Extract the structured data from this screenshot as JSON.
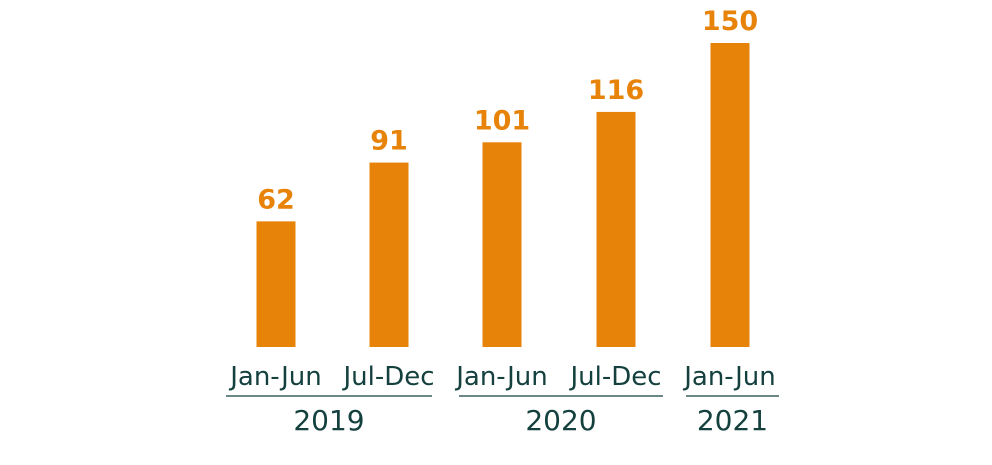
{
  "colors": {
    "bar": "#E8830A",
    "value_label": "#E8830A",
    "axis_text": "#14403E"
  },
  "chart_data": {
    "type": "bar",
    "title": "",
    "xlabel": "",
    "ylabel": "",
    "categories": [
      "Jan-Jun",
      "Jul-Dec",
      "Jan-Jun",
      "Jul-Dec",
      "Jan-Jun"
    ],
    "values": [
      62,
      91,
      101,
      116,
      150
    ],
    "value_labels": [
      "62",
      "91",
      "101",
      "116",
      "150"
    ],
    "groups": [
      {
        "label": "2019",
        "categories": [
          0,
          1
        ]
      },
      {
        "label": "2020",
        "categories": [
          2,
          3
        ]
      },
      {
        "label": "2021",
        "categories": [
          4
        ]
      }
    ],
    "ylim": [
      0,
      150
    ],
    "grid": false,
    "legend": "none"
  }
}
